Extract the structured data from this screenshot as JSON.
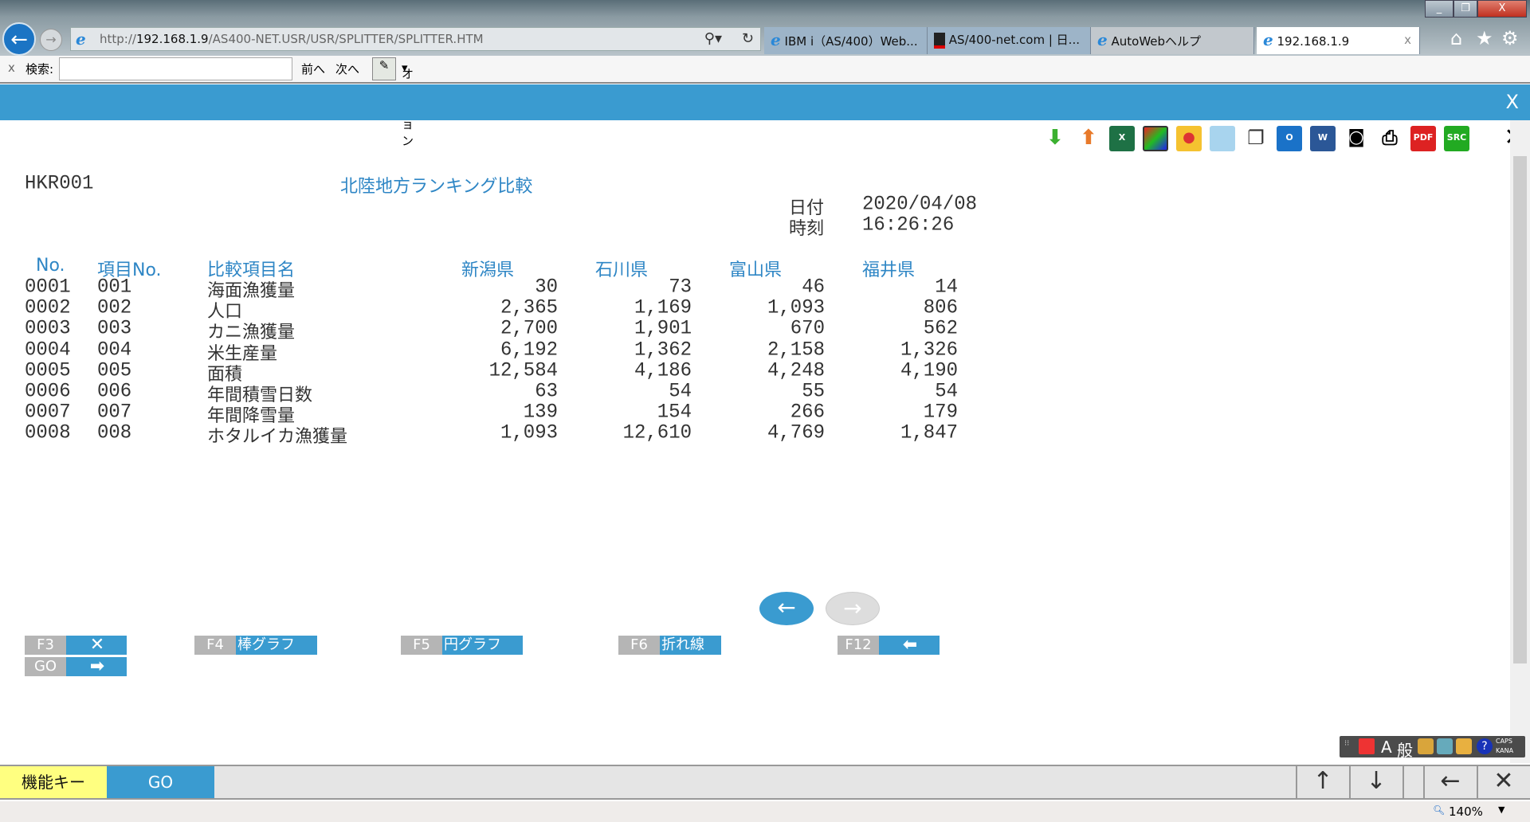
{
  "browser": {
    "address": {
      "prefix": "http://",
      "host": "192.168.1.9",
      "path": "/AS400-NET.USR/USR/SPLITTER/SPLITTER.HTM"
    },
    "tabs": [
      {
        "label": "IBM i（AS/400）Web..."
      },
      {
        "label": "AS/400-net.com | 日..."
      },
      {
        "label": "AutoWebヘルプ"
      },
      {
        "label": "192.168.1.9",
        "active": true
      }
    ],
    "find": {
      "close": "x",
      "label": "検索:",
      "value": "",
      "prev": "前へ",
      "next": "次へ",
      "options": "オプション"
    },
    "zoom": "140%",
    "window_controls": {
      "minimize": "_",
      "restore": "❐",
      "close": "X"
    }
  },
  "notification_close": "X",
  "toolbar": {
    "icons": [
      "download-icon",
      "upload-icon",
      "excel-icon",
      "image-icon",
      "palette-icon",
      "notepad-icon",
      "copy-icon",
      "outlook-icon",
      "word-icon",
      "camera-icon",
      "print-icon",
      "pdf-icon",
      "src-icon",
      "close-icon"
    ],
    "pdf_label": "PDF",
    "src_label": "SRC"
  },
  "screen": {
    "program_id": "HKR001",
    "title": "北陸地方ランキング比較",
    "date_label": "日付",
    "date": "2020/04/08",
    "time_label": "時刻",
    "time": "16:26:26",
    "columns": [
      "No.",
      "項目No.",
      "比較項目名",
      "新潟県",
      "石川県",
      "富山県",
      "福井県"
    ],
    "rows": [
      [
        "0001",
        "001",
        "海面漁獲量",
        "30",
        "73",
        "46",
        "14"
      ],
      [
        "0002",
        "002",
        "人口",
        "2,365",
        "1,169",
        "1,093",
        "806"
      ],
      [
        "0003",
        "003",
        "カニ漁獲量",
        "2,700",
        "1,901",
        "670",
        "562"
      ],
      [
        "0004",
        "004",
        "米生産量",
        "6,192",
        "1,362",
        "2,158",
        "1,326"
      ],
      [
        "0005",
        "005",
        "面積",
        "12,584",
        "4,186",
        "4,248",
        "4,190"
      ],
      [
        "0006",
        "006",
        "年間積雪日数",
        "63",
        "54",
        "55",
        "54"
      ],
      [
        "0007",
        "007",
        "年間降雪量",
        "139",
        "154",
        "266",
        "179"
      ],
      [
        "0008",
        "008",
        "ホタルイカ漁獲量",
        "1,093",
        "12,610",
        "4,769",
        "1,847"
      ]
    ]
  },
  "pager": {
    "prev": "←",
    "next": "→",
    "next_enabled": false
  },
  "function_keys": [
    {
      "key": "F3",
      "icon": "close-icon",
      "glyph": "✕"
    },
    {
      "key": "GO",
      "icon": "arrow-right-icon",
      "glyph": "➡"
    },
    {
      "key": "F4",
      "label": "棒グラフ"
    },
    {
      "key": "F5",
      "label": "円グラフ"
    },
    {
      "key": "F6",
      "label": "折れ線"
    },
    {
      "key": "F12",
      "icon": "arrow-left-icon",
      "glyph": "⬅"
    }
  ],
  "ime": {
    "mode": "A",
    "kanji": "般",
    "caps": "CAPS",
    "kana": "KANA"
  },
  "bottom_bar": {
    "function_keys": "機能キー",
    "go": "GO",
    "up": "↑",
    "down": "↓",
    "back": "←",
    "close": "✕"
  },
  "colors": {
    "accent": "#3a9bd0",
    "function_key_bg": "#ffff80",
    "key_gray": "#b5b5b5"
  }
}
